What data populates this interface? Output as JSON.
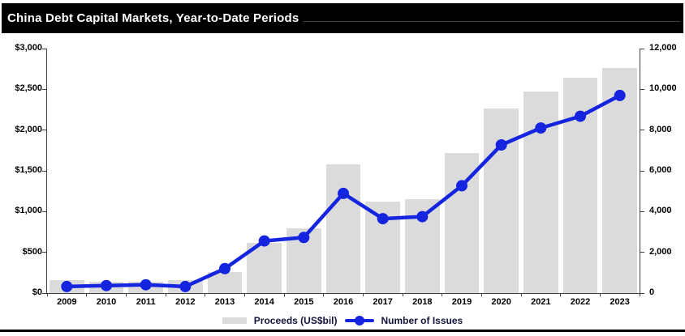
{
  "header": {
    "title": "China Debt Capital Markets, Year-to-Date Periods"
  },
  "legend": {
    "proceeds_label": "Proceeds (US$bil)",
    "issues_label": "Number of Issues"
  },
  "colors": {
    "bar": "#dbdbdb",
    "line": "#1424df",
    "title_bg": "#000000",
    "title_text": "#ffffff",
    "axis": "#404040"
  },
  "chart_data": {
    "type": "bar",
    "title": "China Debt Capital Markets, Year-to-Date Periods",
    "categories": [
      "2009",
      "2010",
      "2011",
      "2012",
      "2013",
      "2014",
      "2015",
      "2016",
      "2017",
      "2018",
      "2019",
      "2020",
      "2021",
      "2022",
      "2023"
    ],
    "series": [
      {
        "name": "Proceeds (US$bil)",
        "type": "bar",
        "axis": "left",
        "color": "#dbdbdb",
        "values": [
          160,
          140,
          140,
          160,
          260,
          620,
          790,
          1580,
          1120,
          1150,
          1720,
          2270,
          2470,
          2640,
          2760
        ]
      },
      {
        "name": "Number of Issues",
        "type": "line",
        "axis": "right",
        "color": "#1424df",
        "values": [
          320,
          370,
          410,
          320,
          1200,
          2560,
          2730,
          4890,
          3650,
          3750,
          5270,
          7270,
          8100,
          8680,
          9700
        ]
      }
    ],
    "left_axis": {
      "min": 0,
      "max": 3000,
      "tick_labels": [
        "$0",
        "$500",
        "$1,000",
        "$1,500",
        "$2,000",
        "$2,500",
        "$3,000"
      ]
    },
    "right_axis": {
      "min": 0,
      "max": 12000,
      "tick_labels": [
        "0",
        "2,000",
        "4,000",
        "6,000",
        "8,000",
        "10,000",
        "12,000"
      ]
    },
    "legend_position": "bottom",
    "grid": false
  }
}
